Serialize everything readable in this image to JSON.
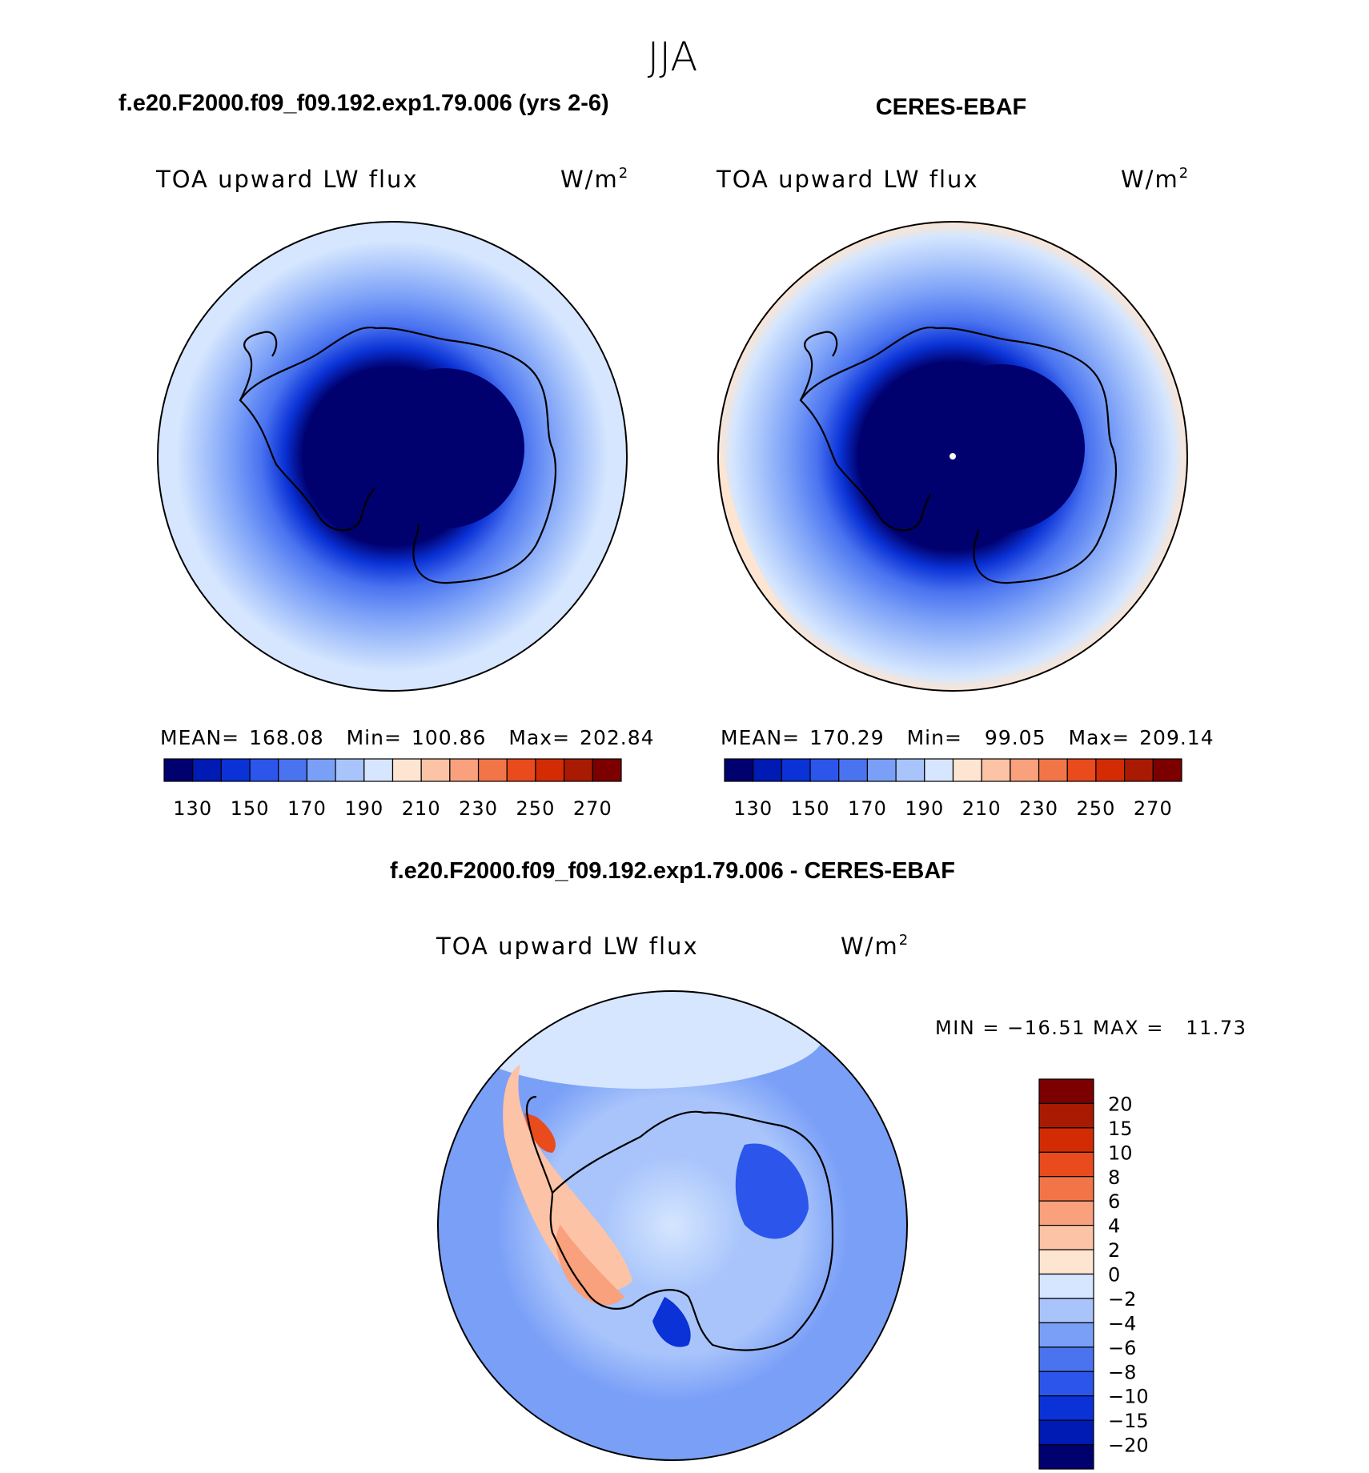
{
  "title": "JJA",
  "panels": {
    "model": {
      "case_title": "f.e20.F2000.f09_f09.192.exp1.79.006 (yrs 2-6)",
      "variable": "TOA upward LW flux",
      "units_base": "W/m",
      "units_exp": "2",
      "stats": {
        "mean_label": "MEAN=",
        "mean_value": "168.08",
        "min_label": "Min=",
        "min_value": "100.86",
        "max_label": "Max=",
        "max_value": "202.84"
      }
    },
    "obs": {
      "case_title": "CERES-EBAF",
      "variable": "TOA upward LW flux",
      "units_base": "W/m",
      "units_exp": "2",
      "stats": {
        "mean_label": "MEAN=",
        "mean_value": "170.29",
        "min_label": "Min=",
        "min_value": "99.05",
        "max_label": "Max=",
        "max_value": "209.14"
      }
    },
    "diff": {
      "case_title": "f.e20.F2000.f09_f09.192.exp1.79.006 - CERES-EBAF",
      "variable": "TOA upward LW flux",
      "units_base": "W/m",
      "units_exp": "2",
      "range_text": "MIN = −16.51 MAX =   11.73"
    }
  },
  "chart_data": [
    {
      "type": "heatmap",
      "name": "model",
      "projection": "south-polar-stereographic",
      "colorbar": {
        "orientation": "horizontal",
        "levels": [
          130,
          140,
          150,
          160,
          170,
          180,
          190,
          200,
          210,
          220,
          230,
          240,
          250,
          260,
          270
        ],
        "tick_labels": [
          "130",
          "150",
          "170",
          "190",
          "210",
          "230",
          "250",
          "270"
        ],
        "colors": [
          "#00006e",
          "#001ab4",
          "#0a32d6",
          "#2b55eb",
          "#4a73f0",
          "#7a9ff7",
          "#a8c4fb",
          "#d5e6fe",
          "#fde5d2",
          "#fcc3a6",
          "#f9a07c",
          "#f27548",
          "#e94b1d",
          "#d32c05",
          "#a81b02",
          "#7c0000"
        ]
      },
      "stats": {
        "mean": 168.08,
        "min": 100.86,
        "max": 202.84
      }
    },
    {
      "type": "heatmap",
      "name": "obs",
      "projection": "south-polar-stereographic",
      "colorbar": {
        "orientation": "horizontal",
        "levels": [
          130,
          140,
          150,
          160,
          170,
          180,
          190,
          200,
          210,
          220,
          230,
          240,
          250,
          260,
          270
        ],
        "tick_labels": [
          "130",
          "150",
          "170",
          "190",
          "210",
          "230",
          "250",
          "270"
        ],
        "colors": [
          "#00006e",
          "#001ab4",
          "#0a32d6",
          "#2b55eb",
          "#4a73f0",
          "#7a9ff7",
          "#a8c4fb",
          "#d5e6fe",
          "#fde5d2",
          "#fcc3a6",
          "#f9a07c",
          "#f27548",
          "#e94b1d",
          "#d32c05",
          "#a81b02",
          "#7c0000"
        ]
      },
      "stats": {
        "mean": 170.29,
        "min": 99.05,
        "max": 209.14
      }
    },
    {
      "type": "heatmap",
      "name": "diff",
      "projection": "south-polar-stereographic",
      "colorbar": {
        "orientation": "vertical",
        "levels": [
          -20,
          -15,
          -10,
          -8,
          -6,
          -4,
          -2,
          0,
          2,
          4,
          6,
          8,
          10,
          15,
          20
        ],
        "tick_labels": [
          "−20",
          "−15",
          "−10",
          "−8",
          "−6",
          "−4",
          "−2",
          "0",
          "2",
          "4",
          "6",
          "8",
          "10",
          "15",
          "20"
        ],
        "colors": [
          "#00006e",
          "#001ab4",
          "#0a32d6",
          "#2b55eb",
          "#4a73f0",
          "#7a9ff7",
          "#a8c4fb",
          "#d5e6fe",
          "#fde5d2",
          "#fcc3a6",
          "#f9a07c",
          "#f27548",
          "#e94b1d",
          "#d32c05",
          "#a81b02",
          "#7c0000"
        ]
      },
      "stats": {
        "min": -16.51,
        "max": 11.73
      }
    }
  ]
}
